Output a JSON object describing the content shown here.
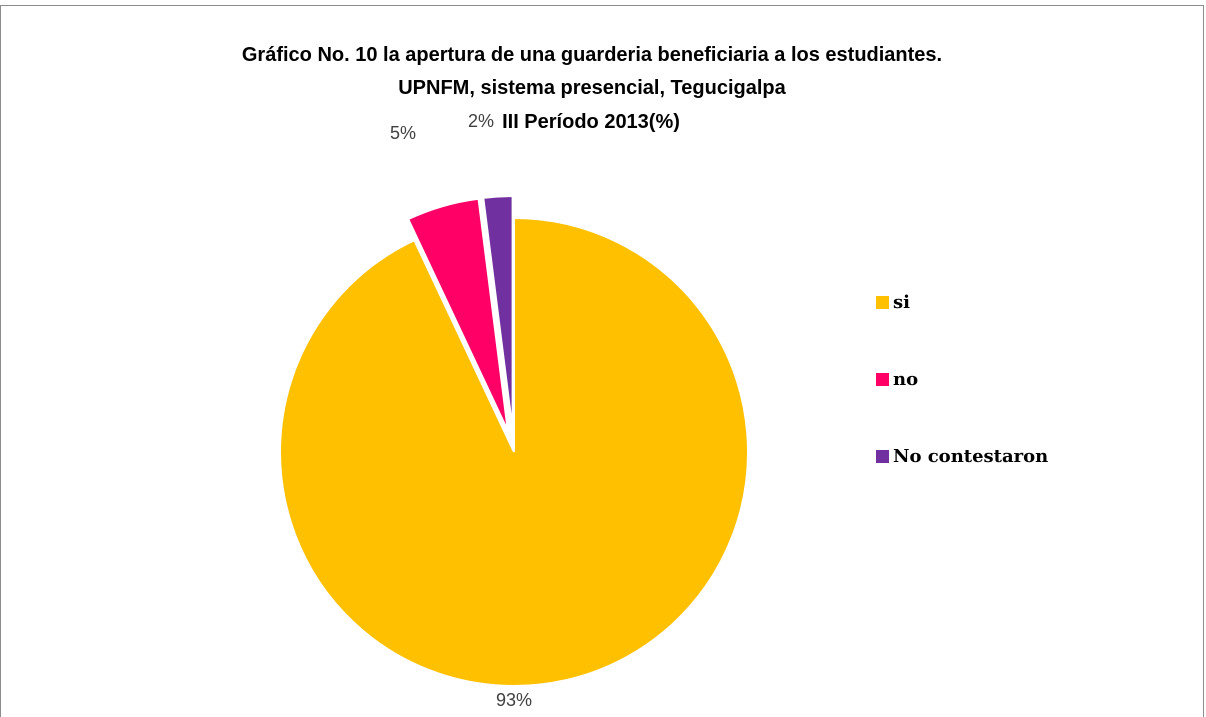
{
  "title": {
    "line1": "Gráfico No. 10  la apertura de una guarderia beneficiaria a los estudiantes.",
    "line2": "UPNFM, sistema presencial, Tegucigalpa",
    "line3": "III Período 2013(%)"
  },
  "chart_data": {
    "type": "pie",
    "title": "Gráfico No. 10  la apertura de una guarderia beneficiaria a los estudiantes. UPNFM, sistema presencial, Tegucigalpa III Período 2013(%)",
    "categories": [
      "si",
      "no",
      "No contestaron"
    ],
    "values": [
      93,
      5,
      2
    ],
    "data_labels": [
      "93%",
      "5%",
      "2%"
    ],
    "colors": [
      "#FFC000",
      "#FF0066",
      "#7030A0"
    ],
    "exploded": true,
    "legend_position": "right"
  }
}
